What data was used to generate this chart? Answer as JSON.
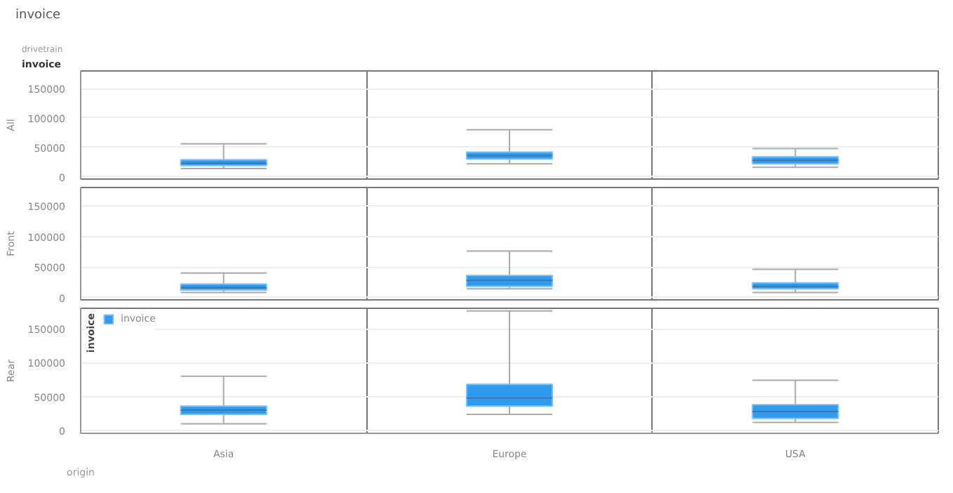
{
  "chart_data": [
    {
      "type": "box",
      "title": "invoice",
      "annotations": [
        "drivetrain",
        "invoice"
      ],
      "ylabel": "All",
      "categories": [
        null,
        null,
        null
      ],
      "ylim": [
        -4000,
        180000
      ],
      "yticks": [
        0,
        50000,
        100000,
        150000
      ],
      "grid": "y",
      "tick_labels": "y",
      "series": [
        {
          "color": "#2f9bf0",
          "boxes": [
            {
              "low": 14000,
              "q1": 19000,
              "median": 23000,
              "q3": 29000,
              "high": 56000
            },
            {
              "low": 22000,
              "q1": 30000,
              "median": 36000,
              "q3": 42000,
              "high": 80000
            },
            {
              "low": 16000,
              "q1": 22000,
              "median": 28000,
              "q3": 34000,
              "high": 48000
            }
          ]
        }
      ]
    },
    {
      "type": "box",
      "ylabel": "Front",
      "categories": [
        null,
        null,
        null
      ],
      "ylim": [
        -4000,
        180000
      ],
      "yticks": [
        0,
        50000,
        100000,
        150000
      ],
      "grid": "y",
      "tick_labels": "y",
      "series": [
        {
          "color": "#2f9bf0",
          "boxes": [
            {
              "low": 8000,
              "q1": 12000,
              "median": 16000,
              "q3": 22000,
              "high": 40000
            },
            {
              "low": 14000,
              "q1": 18000,
              "median": 28000,
              "q3": 36000,
              "high": 76000
            },
            {
              "low": 8000,
              "q1": 14000,
              "median": 18000,
              "q3": 24000,
              "high": 46000
            }
          ]
        }
      ]
    },
    {
      "type": "box",
      "ylabel": "Rear",
      "annotations": [
        "origin"
      ],
      "legend": "top left",
      "legend_title": "invoice",
      "categories": [
        "Asia",
        "Europe",
        "USA"
      ],
      "ylim": [
        -4000,
        180000
      ],
      "yticks": [
        0,
        50000,
        100000,
        150000
      ],
      "grid": "y",
      "series": [
        {
          "name": "invoice",
          "color": "#2f9bf0",
          "boxes": [
            {
              "low": 10000,
              "q1": 24000,
              "median": 30000,
              "q3": 36000,
              "high": 80000
            },
            {
              "low": 24000,
              "q1": 36000,
              "median": 48000,
              "q3": 68000,
              "high": 176000
            },
            {
              "low": 12000,
              "q1": 18000,
              "median": 28000,
              "q3": 38000,
              "high": 74000
            }
          ]
        }
      ]
    }
  ]
}
